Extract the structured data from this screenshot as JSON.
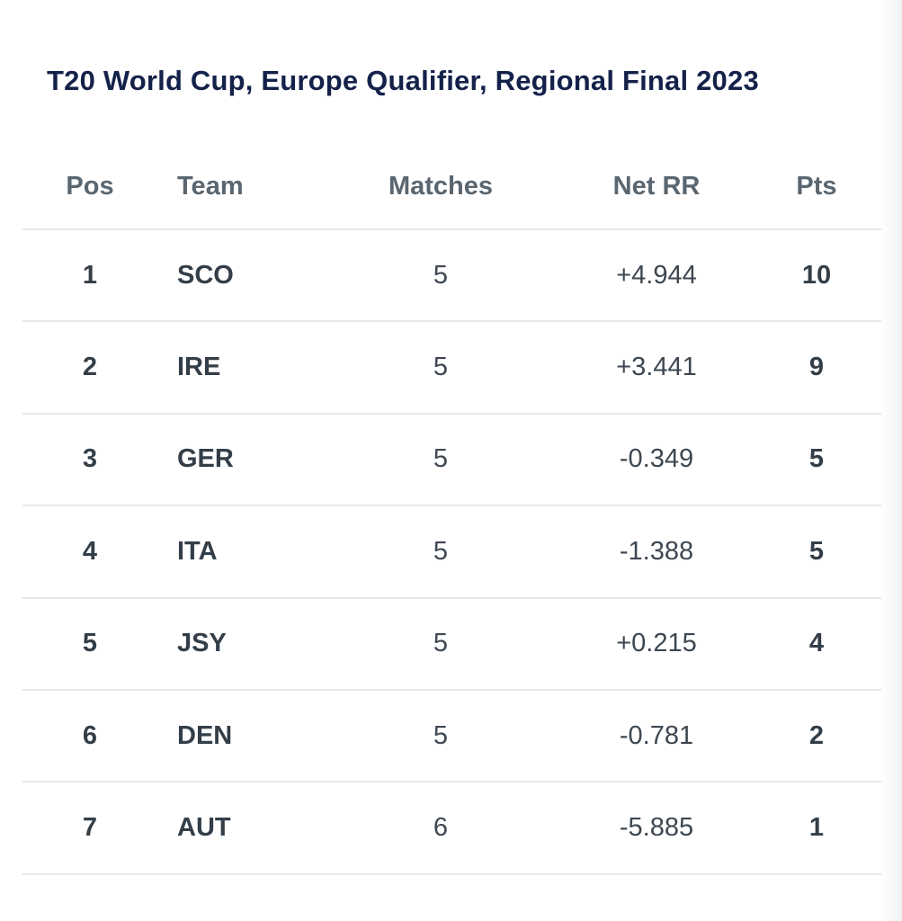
{
  "title": "T20 World Cup, Europe Qualifier, Regional Final 2023",
  "table": {
    "headers": [
      "Pos",
      "Team",
      "Matches",
      "Net RR",
      "Pts"
    ],
    "rows": [
      {
        "pos": "1",
        "team": "SCO",
        "matches": "5",
        "net_rr": "+4.944",
        "pts": "10"
      },
      {
        "pos": "2",
        "team": "IRE",
        "matches": "5",
        "net_rr": "+3.441",
        "pts": "9"
      },
      {
        "pos": "3",
        "team": "GER",
        "matches": "5",
        "net_rr": "-0.349",
        "pts": "5"
      },
      {
        "pos": "4",
        "team": "ITA",
        "matches": "5",
        "net_rr": "-1.388",
        "pts": "5"
      },
      {
        "pos": "5",
        "team": "JSY",
        "matches": "5",
        "net_rr": "+0.215",
        "pts": "4"
      },
      {
        "pos": "6",
        "team": "DEN",
        "matches": "5",
        "net_rr": "-0.781",
        "pts": "2"
      },
      {
        "pos": "7",
        "team": "AUT",
        "matches": "6",
        "net_rr": "-5.885",
        "pts": "1"
      }
    ]
  },
  "colors": {
    "bg": "#ffffff",
    "title-color": "#14224a",
    "header-text": "#5a6670",
    "cell-strong": "#333e48",
    "cell-regular": "#3d4751",
    "divider": "#e4e8e7"
  },
  "chart_data": {
    "type": "table",
    "title": "T20 World Cup, Europe Qualifier, Regional Final 2023",
    "columns": [
      "Pos",
      "Team",
      "Matches",
      "Net RR",
      "Pts"
    ],
    "rows": [
      [
        1,
        "SCO",
        5,
        4.944,
        10
      ],
      [
        2,
        "IRE",
        5,
        3.441,
        9
      ],
      [
        3,
        "GER",
        5,
        -0.349,
        5
      ],
      [
        4,
        "ITA",
        5,
        -1.388,
        5
      ],
      [
        5,
        "JSY",
        5,
        0.215,
        4
      ],
      [
        6,
        "DEN",
        5,
        -0.781,
        2
      ],
      [
        7,
        "AUT",
        6,
        -5.885,
        1
      ]
    ]
  }
}
